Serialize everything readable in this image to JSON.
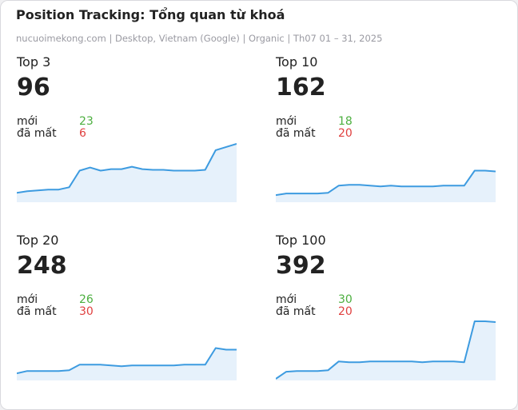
{
  "header": {
    "title": "Position Tracking: Tổng quan từ khoá",
    "subtitle": "nucuoimekong.com | Desktop, Vietnam (Google) | Organic | Th07 01 – 31, 2025"
  },
  "panels": [
    {
      "label": "Top 3",
      "value": 96,
      "new_label": "mới",
      "new": 23,
      "lost_label": "đã mất",
      "lost": 6,
      "trend": [
        12,
        14,
        15,
        16,
        16,
        19,
        40,
        44,
        40,
        42,
        42,
        45,
        42,
        41,
        41,
        40,
        40,
        40,
        41,
        66,
        70,
        74
      ]
    },
    {
      "label": "Top 10",
      "value": 162,
      "new_label": "mới",
      "new": 18,
      "lost_label": "đã mất",
      "lost": 20,
      "trend": [
        9,
        11,
        11,
        11,
        11,
        12,
        21,
        22,
        22,
        21,
        20,
        21,
        20,
        20,
        20,
        20,
        21,
        21,
        21,
        40,
        40,
        39
      ]
    },
    {
      "label": "Top 20",
      "value": 248,
      "new_label": "mới",
      "new": 26,
      "lost_label": "đã mất",
      "lost": 30,
      "trend": [
        9,
        12,
        12,
        12,
        12,
        13,
        20,
        20,
        20,
        19,
        18,
        19,
        19,
        19,
        19,
        19,
        20,
        20,
        20,
        41,
        39,
        39
      ]
    },
    {
      "label": "Top 100",
      "value": 392,
      "new_label": "mới",
      "new": 30,
      "lost_label": "đã mất",
      "lost": 20,
      "trend": [
        2,
        11,
        12,
        12,
        12,
        13,
        24,
        23,
        23,
        24,
        24,
        24,
        24,
        24,
        23,
        24,
        24,
        24,
        23,
        75,
        75,
        74
      ]
    }
  ]
}
